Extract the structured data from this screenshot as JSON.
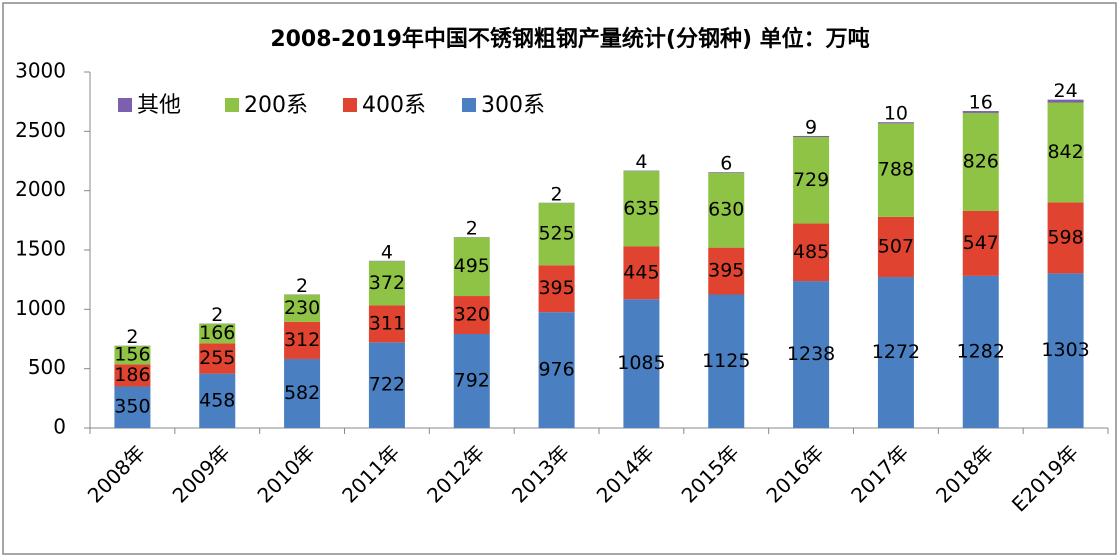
{
  "chart_data": {
    "type": "stacked_bar",
    "title": "2008-2019年中国不锈钢粗钢产量统计(分钢种) 单位：万吨",
    "categories": [
      "2008年",
      "2009年",
      "2010年",
      "2011年",
      "2012年",
      "2013年",
      "2014年",
      "2015年",
      "2016年",
      "2017年",
      "2018年",
      "E2019年"
    ],
    "series": [
      {
        "name": "300系",
        "color": "#4a7fc1",
        "values": [
          350,
          458,
          582,
          722,
          792,
          976,
          1085,
          1125,
          1238,
          1272,
          1282,
          1303
        ]
      },
      {
        "name": "400系",
        "color": "#e0432f",
        "values": [
          186,
          255,
          312,
          311,
          320,
          395,
          445,
          395,
          485,
          507,
          547,
          598
        ]
      },
      {
        "name": "200系",
        "color": "#8fc345",
        "values": [
          156,
          166,
          230,
          372,
          495,
          525,
          635,
          630,
          729,
          788,
          826,
          842
        ]
      },
      {
        "name": "其他",
        "color": "#7d5fb0",
        "values": [
          2,
          2,
          2,
          4,
          2,
          2,
          4,
          6,
          9,
          10,
          16,
          24
        ]
      }
    ],
    "ylim": [
      0,
      3000
    ],
    "yticks": [
      0,
      500,
      1000,
      1500,
      2000,
      2500,
      3000
    ],
    "grid": false,
    "legend": "top-left"
  }
}
